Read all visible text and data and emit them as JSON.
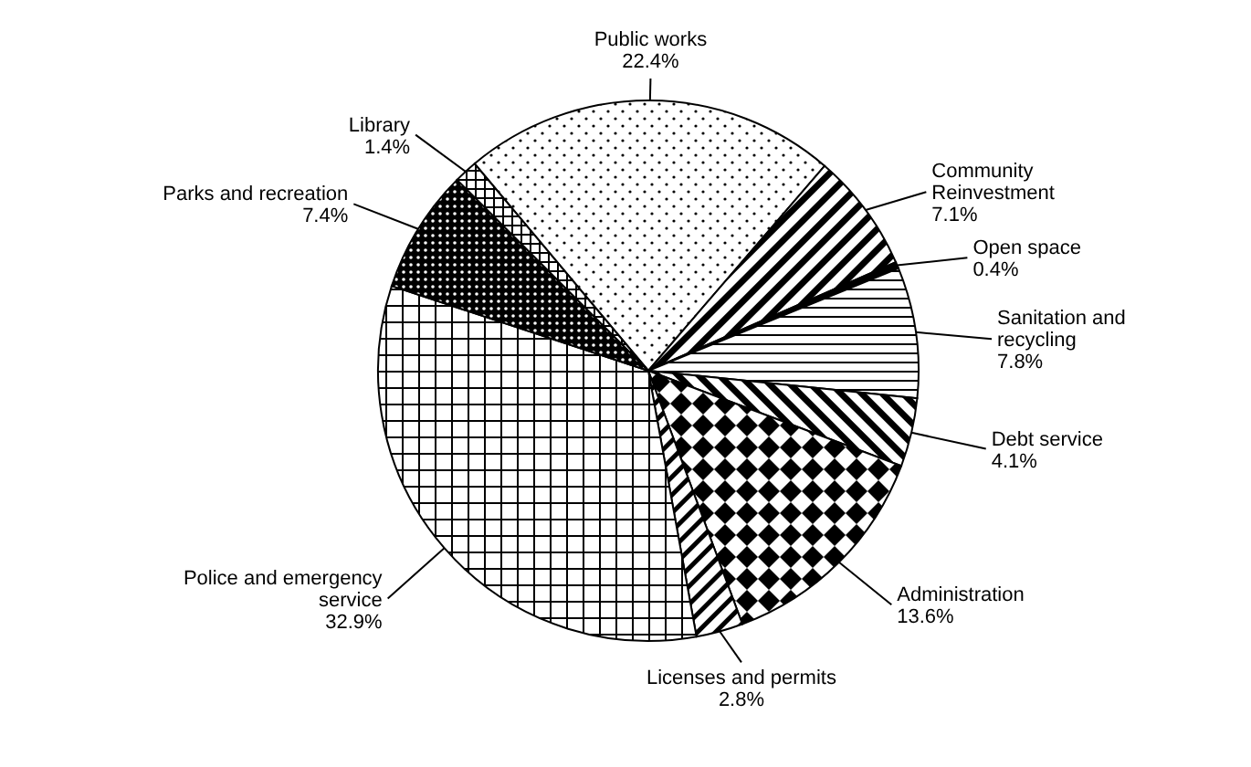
{
  "chart_data": {
    "type": "pie",
    "categories": [
      "Public works",
      "Community Reinvestment",
      "Open space",
      "Sanitation and recycling",
      "Debt service",
      "Administration",
      "Licenses and permits",
      "Police and emergency service",
      "Parks and recreation",
      "Library"
    ],
    "values": [
      22.4,
      7.1,
      0.4,
      7.8,
      4.1,
      13.6,
      2.8,
      32.9,
      7.4,
      1.4
    ],
    "value_labels": [
      "22.4%",
      "7.1%",
      "0.4%",
      "7.8%",
      "4.1%",
      "13.6%",
      "2.8%",
      "32.9%",
      "7.4%",
      "1.4%"
    ]
  }
}
